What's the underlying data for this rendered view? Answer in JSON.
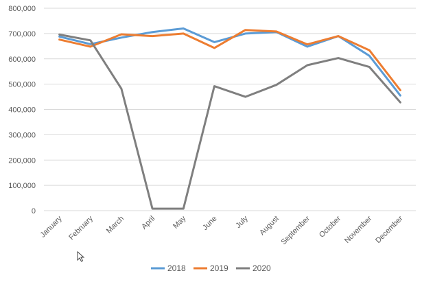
{
  "chart_data": {
    "type": "line",
    "categories": [
      "January",
      "February",
      "March",
      "April",
      "May",
      "June",
      "July",
      "August",
      "September",
      "October",
      "November",
      "December"
    ],
    "y_ticks": [
      "0",
      "100,000",
      "200,000",
      "300,000",
      "400,000",
      "500,000",
      "600,000",
      "700,000",
      "800,000"
    ],
    "ylim": [
      0,
      800000
    ],
    "grid": true,
    "legend_position": "bottom",
    "series": [
      {
        "name": "2018",
        "color": "#5b9bd5",
        "values": [
          688000,
          658000,
          684000,
          706000,
          720000,
          666000,
          700000,
          706000,
          648000,
          690000,
          612000,
          455000
        ]
      },
      {
        "name": "2019",
        "color": "#ed7d31",
        "values": [
          676000,
          648000,
          697000,
          690000,
          700000,
          643000,
          714000,
          708000,
          657000,
          690000,
          634000,
          476000
        ]
      },
      {
        "name": "2020",
        "color": "#7f7f7f",
        "values": [
          696000,
          673000,
          482000,
          8000,
          8000,
          492000,
          450000,
          497000,
          575000,
          603000,
          568000,
          428000
        ]
      }
    ]
  },
  "cursor_icon": "mouse-pointer-icon"
}
